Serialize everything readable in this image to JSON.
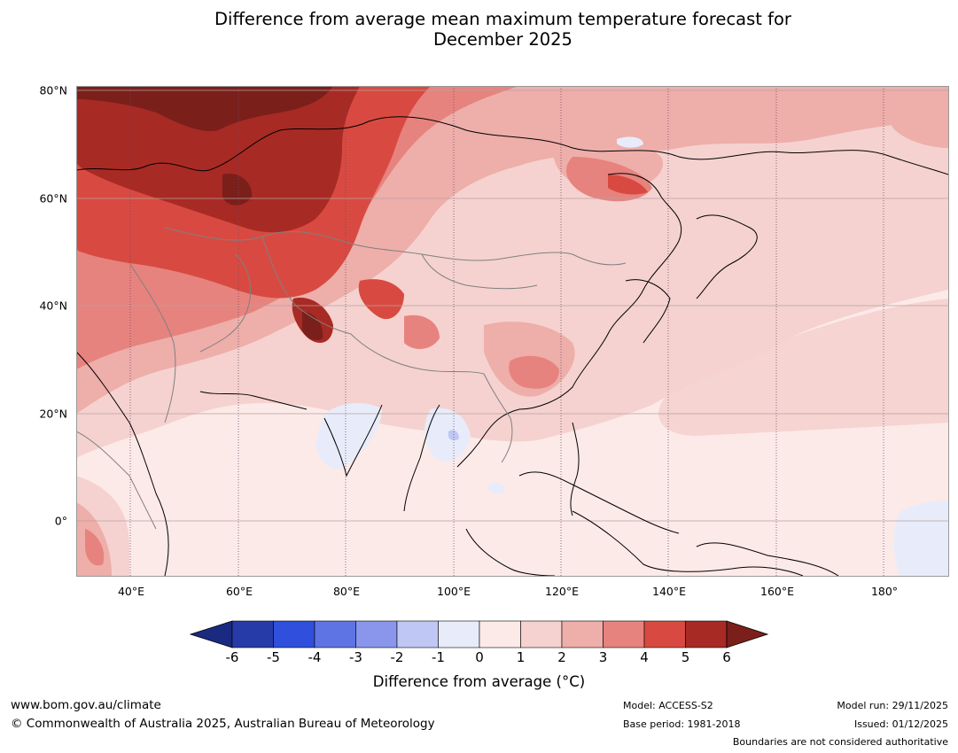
{
  "title": {
    "line1": "Difference from average mean maximum temperature forecast for",
    "line2": "December 2025"
  },
  "map": {
    "latitude_labels": [
      "80°N",
      "60°N",
      "40°N",
      "20°N",
      "0°"
    ],
    "longitude_labels": [
      "40°E",
      "60°E",
      "80°E",
      "100°E",
      "120°E",
      "140°E",
      "160°E",
      "180°"
    ],
    "base_color": "#fceae8"
  },
  "colorbar": {
    "ticks": [
      "-6",
      "-5",
      "-4",
      "-3",
      "-2",
      "-1",
      "0",
      "1",
      "2",
      "3",
      "4",
      "5",
      "6"
    ],
    "colors": [
      "#1a2a80",
      "#273ba8",
      "#2f4fdc",
      "#5f74e4",
      "#8996eb",
      "#bfc8f4",
      "#e8ecfa",
      "#fceae8",
      "#f5d2cf",
      "#eeaeaa",
      "#e7837e",
      "#d84a41",
      "#a82a24",
      "#7b1f1b"
    ],
    "label": "Difference from average (°C)"
  },
  "footer": {
    "website": "www.bom.gov.au/climate",
    "copyright": "© Commonwealth of Australia 2025, Australian Bureau of Meteorology",
    "model": "Model: ACCESS-S2",
    "base_period": "Base period: 1981-2018",
    "model_run": "Model run: 29/11/2025",
    "issued": "Issued: 01/12/2025",
    "disclaimer": "Boundaries are not considered authoritative"
  }
}
